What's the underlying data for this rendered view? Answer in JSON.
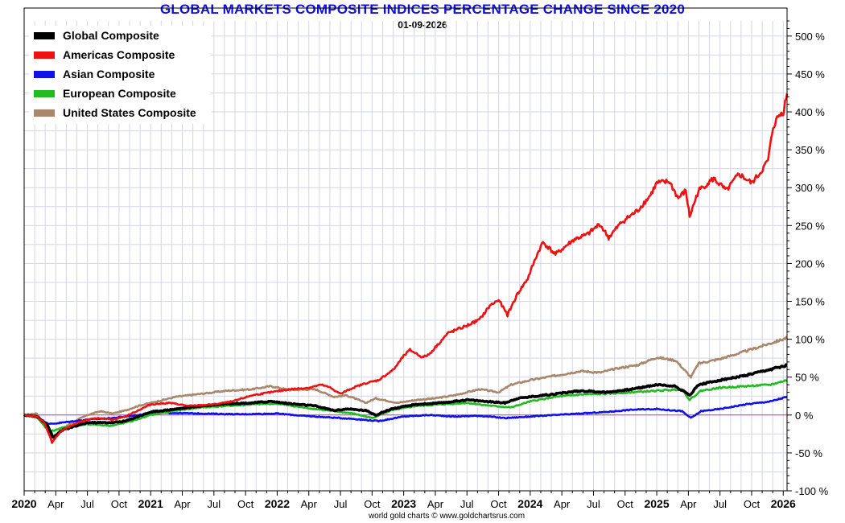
{
  "chart_data": {
    "type": "line",
    "title": "GLOBAL MARKETS COMPOSITE INDICES PERCENTAGE CHANGE SINCE 2020",
    "subtitle": "01-09-2026",
    "footer": "world gold charts © www.goldchartsrus.com",
    "ylim": [
      -100,
      520
    ],
    "yticks": [
      -100,
      -50,
      0,
      50,
      100,
      150,
      200,
      250,
      300,
      350,
      400,
      450,
      500
    ],
    "ytick_labels": [
      "-100 %",
      "-50 %",
      "0 %",
      "50 %",
      "100 %",
      "150 %",
      "200 %",
      "250 %",
      "300 %",
      "350 %",
      "400 %",
      "450 %",
      "500 %"
    ],
    "xlim": [
      2020.0,
      2026.03
    ],
    "xticks": [
      {
        "x": 2020.0,
        "label": "2020",
        "year": true
      },
      {
        "x": 2020.25,
        "label": "Apr",
        "year": false
      },
      {
        "x": 2020.5,
        "label": "Jul",
        "year": false
      },
      {
        "x": 2020.75,
        "label": "Oct",
        "year": false
      },
      {
        "x": 2021.0,
        "label": "2021",
        "year": true
      },
      {
        "x": 2021.25,
        "label": "Apr",
        "year": false
      },
      {
        "x": 2021.5,
        "label": "Jul",
        "year": false
      },
      {
        "x": 2021.75,
        "label": "Oct",
        "year": false
      },
      {
        "x": 2022.0,
        "label": "2022",
        "year": true
      },
      {
        "x": 2022.25,
        "label": "Apr",
        "year": false
      },
      {
        "x": 2022.5,
        "label": "Jul",
        "year": false
      },
      {
        "x": 2022.75,
        "label": "Oct",
        "year": false
      },
      {
        "x": 2023.0,
        "label": "2023",
        "year": true
      },
      {
        "x": 2023.25,
        "label": "Apr",
        "year": false
      },
      {
        "x": 2023.5,
        "label": "Jul",
        "year": false
      },
      {
        "x": 2023.75,
        "label": "Oct",
        "year": false
      },
      {
        "x": 2024.0,
        "label": "2024",
        "year": true
      },
      {
        "x": 2024.25,
        "label": "Apr",
        "year": false
      },
      {
        "x": 2024.5,
        "label": "Jul",
        "year": false
      },
      {
        "x": 2024.75,
        "label": "Oct",
        "year": false
      },
      {
        "x": 2025.0,
        "label": "2025",
        "year": true
      },
      {
        "x": 2025.25,
        "label": "Apr",
        "year": false
      },
      {
        "x": 2025.5,
        "label": "Jul",
        "year": false
      },
      {
        "x": 2025.75,
        "label": "Oct",
        "year": false
      },
      {
        "x": 2026.0,
        "label": "2026",
        "year": true
      }
    ],
    "grid": true,
    "legend_position": "top-left",
    "zero_line_color": "#cc33cc",
    "series": [
      {
        "name": "United States Composite",
        "color": "#a8876a",
        "points": [
          [
            2020.0,
            0
          ],
          [
            2020.1,
            2
          ],
          [
            2020.16,
            -12
          ],
          [
            2020.22,
            -30
          ],
          [
            2020.3,
            -18
          ],
          [
            2020.4,
            -8
          ],
          [
            2020.5,
            0
          ],
          [
            2020.6,
            5
          ],
          [
            2020.7,
            2
          ],
          [
            2020.8,
            6
          ],
          [
            2020.9,
            12
          ],
          [
            2021.0,
            16
          ],
          [
            2021.2,
            24
          ],
          [
            2021.4,
            28
          ],
          [
            2021.6,
            32
          ],
          [
            2021.8,
            34
          ],
          [
            2021.95,
            38
          ],
          [
            2022.1,
            33
          ],
          [
            2022.3,
            34
          ],
          [
            2022.45,
            24
          ],
          [
            2022.55,
            26
          ],
          [
            2022.7,
            16
          ],
          [
            2022.78,
            22
          ],
          [
            2022.95,
            16
          ],
          [
            2023.1,
            20
          ],
          [
            2023.25,
            22
          ],
          [
            2023.4,
            26
          ],
          [
            2023.6,
            34
          ],
          [
            2023.75,
            30
          ],
          [
            2023.85,
            40
          ],
          [
            2024.0,
            46
          ],
          [
            2024.2,
            52
          ],
          [
            2024.4,
            58
          ],
          [
            2024.55,
            56
          ],
          [
            2024.7,
            62
          ],
          [
            2024.85,
            66
          ],
          [
            2025.0,
            76
          ],
          [
            2025.15,
            72
          ],
          [
            2025.27,
            50
          ],
          [
            2025.33,
            68
          ],
          [
            2025.5,
            74
          ],
          [
            2025.7,
            84
          ],
          [
            2025.85,
            92
          ],
          [
            2026.0,
            100
          ],
          [
            2026.03,
            102
          ]
        ]
      },
      {
        "name": "Asian Composite",
        "color": "#1010e8",
        "points": [
          [
            2020.0,
            0
          ],
          [
            2020.1,
            -3
          ],
          [
            2020.2,
            -12
          ],
          [
            2020.3,
            -10
          ],
          [
            2020.5,
            -6
          ],
          [
            2020.7,
            -4
          ],
          [
            2020.9,
            0
          ],
          [
            2021.1,
            3
          ],
          [
            2021.4,
            2
          ],
          [
            2021.7,
            1
          ],
          [
            2022.0,
            2
          ],
          [
            2022.2,
            -1
          ],
          [
            2022.4,
            -3
          ],
          [
            2022.6,
            -5
          ],
          [
            2022.8,
            -8
          ],
          [
            2023.0,
            -2
          ],
          [
            2023.2,
            0
          ],
          [
            2023.4,
            -2
          ],
          [
            2023.6,
            -1
          ],
          [
            2023.8,
            -4
          ],
          [
            2024.0,
            -2
          ],
          [
            2024.2,
            0
          ],
          [
            2024.4,
            2
          ],
          [
            2024.6,
            4
          ],
          [
            2024.8,
            7
          ],
          [
            2025.0,
            8
          ],
          [
            2025.2,
            5
          ],
          [
            2025.27,
            -4
          ],
          [
            2025.35,
            5
          ],
          [
            2025.5,
            8
          ],
          [
            2025.7,
            14
          ],
          [
            2025.9,
            18
          ],
          [
            2026.03,
            24
          ]
        ]
      },
      {
        "name": "European Composite",
        "color": "#22bb22",
        "points": [
          [
            2020.0,
            0
          ],
          [
            2020.1,
            -3
          ],
          [
            2020.2,
            -22
          ],
          [
            2020.3,
            -17
          ],
          [
            2020.5,
            -12
          ],
          [
            2020.7,
            -14
          ],
          [
            2020.85,
            -8
          ],
          [
            2021.0,
            0
          ],
          [
            2021.2,
            6
          ],
          [
            2021.4,
            10
          ],
          [
            2021.6,
            12
          ],
          [
            2021.8,
            14
          ],
          [
            2022.0,
            15
          ],
          [
            2022.2,
            10
          ],
          [
            2022.4,
            6
          ],
          [
            2022.6,
            2
          ],
          [
            2022.75,
            -4
          ],
          [
            2022.9,
            6
          ],
          [
            2023.1,
            12
          ],
          [
            2023.3,
            14
          ],
          [
            2023.5,
            16
          ],
          [
            2023.7,
            12
          ],
          [
            2023.85,
            10
          ],
          [
            2024.0,
            18
          ],
          [
            2024.2,
            24
          ],
          [
            2024.4,
            27
          ],
          [
            2024.6,
            28
          ],
          [
            2024.8,
            30
          ],
          [
            2025.0,
            32
          ],
          [
            2025.2,
            34
          ],
          [
            2025.26,
            20
          ],
          [
            2025.35,
            32
          ],
          [
            2025.5,
            36
          ],
          [
            2025.7,
            38
          ],
          [
            2025.9,
            40
          ],
          [
            2026.03,
            46
          ]
        ]
      },
      {
        "name": "Global Composite",
        "color": "#000000",
        "points": [
          [
            2020.0,
            0
          ],
          [
            2020.1,
            -2
          ],
          [
            2020.18,
            -12
          ],
          [
            2020.23,
            -30
          ],
          [
            2020.3,
            -20
          ],
          [
            2020.4,
            -15
          ],
          [
            2020.5,
            -10
          ],
          [
            2020.7,
            -10
          ],
          [
            2020.8,
            -8
          ],
          [
            2020.9,
            -2
          ],
          [
            2021.0,
            4
          ],
          [
            2021.2,
            8
          ],
          [
            2021.4,
            12
          ],
          [
            2021.6,
            15
          ],
          [
            2021.8,
            16
          ],
          [
            2021.95,
            18
          ],
          [
            2022.1,
            15
          ],
          [
            2022.3,
            12
          ],
          [
            2022.45,
            6
          ],
          [
            2022.55,
            8
          ],
          [
            2022.7,
            6
          ],
          [
            2022.78,
            0
          ],
          [
            2022.9,
            8
          ],
          [
            2023.1,
            14
          ],
          [
            2023.3,
            16
          ],
          [
            2023.5,
            20
          ],
          [
            2023.65,
            18
          ],
          [
            2023.8,
            16
          ],
          [
            2023.9,
            22
          ],
          [
            2024.0,
            24
          ],
          [
            2024.2,
            28
          ],
          [
            2024.4,
            32
          ],
          [
            2024.6,
            30
          ],
          [
            2024.8,
            34
          ],
          [
            2025.0,
            40
          ],
          [
            2025.15,
            38
          ],
          [
            2025.26,
            26
          ],
          [
            2025.33,
            40
          ],
          [
            2025.5,
            46
          ],
          [
            2025.7,
            52
          ],
          [
            2025.9,
            60
          ],
          [
            2026.03,
            66
          ]
        ]
      },
      {
        "name": "Americas Composite",
        "color": "#ee1111",
        "points": [
          [
            2020.0,
            0
          ],
          [
            2020.1,
            -2
          ],
          [
            2020.16,
            -10
          ],
          [
            2020.22,
            -36
          ],
          [
            2020.3,
            -20
          ],
          [
            2020.4,
            -12
          ],
          [
            2020.5,
            -6
          ],
          [
            2020.6,
            -4
          ],
          [
            2020.7,
            -6
          ],
          [
            2020.8,
            -2
          ],
          [
            2020.9,
            6
          ],
          [
            2021.0,
            14
          ],
          [
            2021.15,
            16
          ],
          [
            2021.3,
            12
          ],
          [
            2021.5,
            14
          ],
          [
            2021.65,
            18
          ],
          [
            2021.8,
            26
          ],
          [
            2021.95,
            30
          ],
          [
            2022.1,
            34
          ],
          [
            2022.25,
            36
          ],
          [
            2022.35,
            40
          ],
          [
            2022.42,
            36
          ],
          [
            2022.5,
            28
          ],
          [
            2022.6,
            36
          ],
          [
            2022.7,
            42
          ],
          [
            2022.8,
            46
          ],
          [
            2022.92,
            60
          ],
          [
            2023.0,
            78
          ],
          [
            2023.05,
            86
          ],
          [
            2023.15,
            76
          ],
          [
            2023.2,
            80
          ],
          [
            2023.35,
            108
          ],
          [
            2023.5,
            118
          ],
          [
            2023.6,
            126
          ],
          [
            2023.68,
            144
          ],
          [
            2023.75,
            152
          ],
          [
            2023.82,
            132
          ],
          [
            2023.9,
            160
          ],
          [
            2023.98,
            180
          ],
          [
            2024.05,
            210
          ],
          [
            2024.1,
            228
          ],
          [
            2024.2,
            212
          ],
          [
            2024.35,
            232
          ],
          [
            2024.45,
            238
          ],
          [
            2024.55,
            252
          ],
          [
            2024.62,
            234
          ],
          [
            2024.72,
            254
          ],
          [
            2024.85,
            270
          ],
          [
            2024.95,
            290
          ],
          [
            2025.0,
            306
          ],
          [
            2025.1,
            308
          ],
          [
            2025.17,
            286
          ],
          [
            2025.23,
            296
          ],
          [
            2025.26,
            262
          ],
          [
            2025.33,
            296
          ],
          [
            2025.45,
            312
          ],
          [
            2025.55,
            296
          ],
          [
            2025.65,
            318
          ],
          [
            2025.75,
            306
          ],
          [
            2025.82,
            320
          ],
          [
            2025.88,
            336
          ],
          [
            2025.92,
            380
          ],
          [
            2025.96,
            394
          ],
          [
            2026.0,
            400
          ],
          [
            2026.03,
            424
          ]
        ]
      }
    ]
  }
}
